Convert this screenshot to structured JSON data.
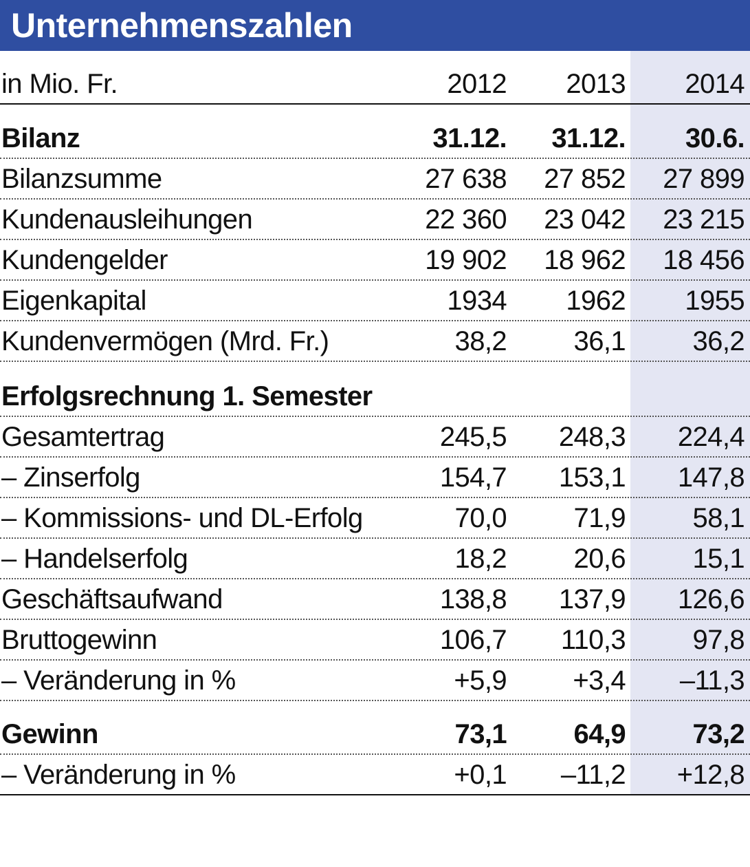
{
  "title": "Unternehmenszahlen",
  "header": {
    "unit": "in Mio. Fr.",
    "years": [
      "2012",
      "2013",
      "2014"
    ]
  },
  "rows": [
    {
      "label": "Bilanz",
      "values": [
        "31.12.",
        "31.12.",
        "30.6."
      ],
      "bold": true
    },
    {
      "label": "Bilanzsumme",
      "values": [
        "27 638",
        "27 852",
        "27 899"
      ]
    },
    {
      "label": "Kundenausleihungen",
      "values": [
        "22 360",
        "23 042",
        "23 215"
      ]
    },
    {
      "label": "Kundengelder",
      "values": [
        "19 902",
        "18 962",
        "18 456"
      ]
    },
    {
      "label": "Eigenkapital",
      "values": [
        "1934",
        "1962",
        "1955"
      ]
    },
    {
      "label": "Kundenvermögen (Mrd. Fr.)",
      "values": [
        "38,2",
        "36,1",
        "36,2"
      ]
    },
    {
      "label": "Erfolgsrechnung 1. Semester",
      "values": [
        "",
        "",
        ""
      ],
      "bold": true
    },
    {
      "label": "Gesamtertrag",
      "values": [
        "245,5",
        "248,3",
        "224,4"
      ]
    },
    {
      "label": "– Zinserfolg",
      "values": [
        "154,7",
        "153,1",
        "147,8"
      ]
    },
    {
      "label": "– Kommissions-  und DL-Erfolg",
      "values": [
        "70,0",
        "71,9",
        "58,1"
      ]
    },
    {
      "label": "– Handelserfolg",
      "values": [
        "18,2",
        "20,6",
        "15,1"
      ]
    },
    {
      "label": "Geschäftsaufwand",
      "values": [
        "138,8",
        "137,9",
        "126,6"
      ]
    },
    {
      "label": "Bruttogewinn",
      "values": [
        "106,7",
        "110,3",
        "97,8"
      ]
    },
    {
      "label": "– Veränderung in %",
      "values": [
        "+5,9",
        "+3,4",
        "–11,3"
      ]
    },
    {
      "label": "Gewinn",
      "values": [
        "73,1",
        "64,9",
        "73,2"
      ],
      "bold": true
    },
    {
      "label": "– Veränderung in %",
      "values": [
        "+0,1",
        "–11,2",
        "+12,8"
      ]
    }
  ]
}
